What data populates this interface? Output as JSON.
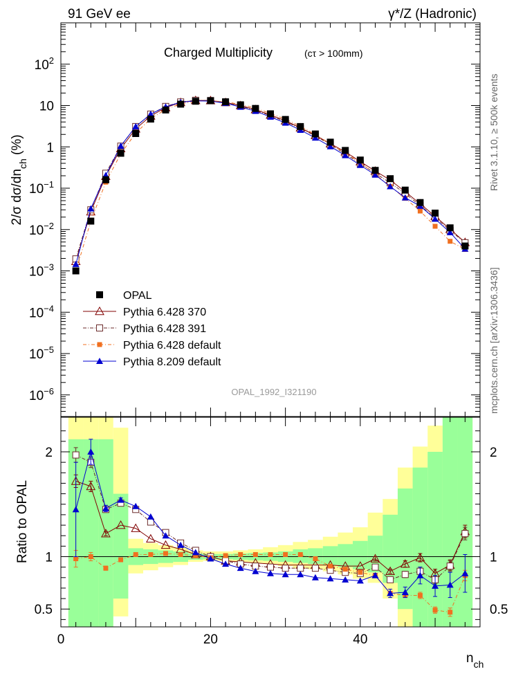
{
  "header": {
    "left": "91 GeV ee",
    "right": "γ*/Z (Hadronic)"
  },
  "side_labels": {
    "rivet": "Rivet 3.1.10, ≥ 500k events",
    "mcplots": "mcplots.cern.ch [arXiv:1306.3436]"
  },
  "watermark": "OPAL_1992_I321190",
  "chart_data": [
    {
      "type": "scatter",
      "title": "Charged Multiplicity",
      "subtitle": "(cτ > 100mm)",
      "ylabel": "2/σ dσ/dn_ch (%)",
      "yscale": "log",
      "xlim": [
        0,
        56
      ],
      "ylim": [
        3e-07,
        1000
      ],
      "yticks": [
        {
          "value": 1e-06,
          "base": "10",
          "exp": "−6"
        },
        {
          "value": 1e-05,
          "base": "10",
          "exp": "−5"
        },
        {
          "value": 0.0001,
          "base": "10",
          "exp": "−4"
        },
        {
          "value": 0.001,
          "base": "10",
          "exp": "−3"
        },
        {
          "value": 0.01,
          "base": "10",
          "exp": "−2"
        },
        {
          "value": 0.1,
          "base": "10",
          "exp": "−1"
        },
        {
          "value": 1,
          "base": "1",
          "exp": ""
        },
        {
          "value": 10,
          "base": "10",
          "exp": ""
        },
        {
          "value": 100,
          "base": "10",
          "exp": "2"
        }
      ],
      "legend": "bottom-left",
      "series": [
        {
          "name": "OPAL",
          "color": "#000000",
          "marker": "square-filled",
          "x": [
            2,
            4,
            6,
            8,
            10,
            12,
            14,
            16,
            18,
            20,
            22,
            24,
            26,
            28,
            30,
            32,
            34,
            36,
            38,
            40,
            42,
            44,
            46,
            48,
            50,
            52,
            54
          ],
          "y": [
            0.001,
            0.016,
            0.16,
            0.7,
            2.1,
            4.7,
            7.8,
            10.8,
            12.7,
            13.1,
            12.3,
            10.4,
            8.5,
            6.3,
            4.6,
            3.1,
            2.05,
            1.3,
            0.82,
            0.48,
            0.27,
            0.17,
            0.09,
            0.045,
            0.025,
            0.011,
            0.004
          ]
        },
        {
          "name": "Pythia 6.428 370",
          "color": "#800000",
          "marker": "triangle-open",
          "x": [
            2,
            4,
            6,
            8,
            10,
            12,
            14,
            16,
            18,
            20,
            22,
            24,
            26,
            28,
            30,
            32,
            34,
            36,
            38,
            40,
            42,
            44,
            46,
            48,
            50,
            52,
            54
          ],
          "y": [
            0.0017,
            0.027,
            0.195,
            0.91,
            2.73,
            5.6,
            8.9,
            11.9,
            13.3,
            13.2,
            11.9,
            10.0,
            8.0,
            5.9,
            4.3,
            2.9,
            1.9,
            1.2,
            0.76,
            0.44,
            0.26,
            0.158,
            0.082,
            0.042,
            0.021,
            0.0102,
            0.0049
          ]
        },
        {
          "name": "Pythia 6.428 391",
          "color": "#6a2a2a",
          "marker": "square-open",
          "x": [
            2,
            4,
            6,
            8,
            10,
            12,
            14,
            16,
            18,
            20,
            22,
            24,
            26,
            28,
            30,
            32,
            34,
            36,
            38,
            40,
            42,
            44,
            46,
            48,
            50,
            52,
            54
          ],
          "y": [
            0.00195,
            0.03,
            0.23,
            1.04,
            3.1,
            6.2,
            9.5,
            12.2,
            13.4,
            13.2,
            11.8,
            9.7,
            7.7,
            5.7,
            4.1,
            2.77,
            1.85,
            1.13,
            0.68,
            0.39,
            0.23,
            0.135,
            0.075,
            0.038,
            0.0195,
            0.0095,
            0.0048
          ]
        },
        {
          "name": "Pythia 6.428 default",
          "color": "#f07020",
          "marker": "square-small-filled",
          "x": [
            2,
            4,
            6,
            8,
            10,
            12,
            14,
            16,
            18,
            20,
            22,
            24,
            26,
            28,
            30,
            32,
            34,
            36,
            38,
            40,
            42,
            44,
            46,
            48,
            50,
            52,
            54
          ],
          "y": [
            0.00098,
            0.016,
            0.14,
            0.68,
            2.15,
            4.8,
            8.0,
            11.0,
            12.8,
            13.0,
            12.4,
            10.6,
            8.7,
            6.4,
            4.7,
            3.15,
            2.0,
            1.18,
            0.72,
            0.41,
            0.22,
            0.11,
            0.057,
            0.028,
            0.012,
            0.0052,
            0.0033
          ]
        },
        {
          "name": "Pythia 8.209 default",
          "color": "#0000d0",
          "marker": "triangle-filled",
          "x": [
            2,
            4,
            6,
            8,
            10,
            12,
            14,
            16,
            18,
            20,
            22,
            24,
            26,
            28,
            30,
            32,
            34,
            36,
            38,
            40,
            42,
            44,
            46,
            48,
            50,
            52,
            54
          ],
          "y": [
            0.00145,
            0.032,
            0.205,
            1.05,
            3.1,
            6.2,
            9.3,
            12.0,
            13.0,
            12.8,
            11.4,
            9.2,
            7.3,
            5.3,
            3.8,
            2.55,
            1.65,
            1.02,
            0.62,
            0.36,
            0.21,
            0.11,
            0.059,
            0.037,
            0.018,
            0.0085,
            0.0034
          ]
        }
      ]
    },
    {
      "type": "scatter",
      "ylabel": "Ratio to OPAL",
      "xlabel": "n_ch",
      "xlim": [
        0,
        56
      ],
      "ylim": [
        0.33,
        2.33
      ],
      "xticks": [
        0,
        20,
        40
      ],
      "yticks": [
        0.5,
        1,
        2
      ],
      "band_edges": [
        1,
        3,
        5,
        7,
        9,
        11,
        13,
        15,
        17,
        19,
        21,
        23,
        25,
        27,
        29,
        31,
        33,
        35,
        37,
        39,
        41,
        43,
        45,
        47,
        49,
        51,
        53,
        55
      ],
      "band_green": [
        [
          0.33,
          2.12
        ],
        [
          0.33,
          2.12
        ],
        [
          0.33,
          2.12
        ],
        [
          0.6,
          1.6
        ],
        [
          0.92,
          1.08
        ],
        [
          0.93,
          1.07
        ],
        [
          0.94,
          1.06
        ],
        [
          0.95,
          1.05
        ],
        [
          0.97,
          1.03
        ],
        [
          0.975,
          1.025
        ],
        [
          0.975,
          1.025
        ],
        [
          0.97,
          1.03
        ],
        [
          0.965,
          1.035
        ],
        [
          0.96,
          1.04
        ],
        [
          0.95,
          1.05
        ],
        [
          0.94,
          1.07
        ],
        [
          0.93,
          1.08
        ],
        [
          0.92,
          1.1
        ],
        [
          0.9,
          1.12
        ],
        [
          0.88,
          1.15
        ],
        [
          0.85,
          1.2
        ],
        [
          0.75,
          1.4
        ],
        [
          0.5,
          1.65
        ],
        [
          0.33,
          1.85
        ],
        [
          0.33,
          2.0
        ],
        [
          0.33,
          2.33
        ],
        [
          0.33,
          2.33
        ]
      ],
      "band_yellow": [
        [
          0.33,
          2.33
        ],
        [
          0.33,
          2.33
        ],
        [
          0.33,
          2.33
        ],
        [
          0.43,
          2.23
        ],
        [
          0.84,
          1.17
        ],
        [
          0.87,
          1.13
        ],
        [
          0.9,
          1.11
        ],
        [
          0.92,
          1.09
        ],
        [
          0.95,
          1.06
        ],
        [
          0.96,
          1.05
        ],
        [
          0.96,
          1.05
        ],
        [
          0.95,
          1.06
        ],
        [
          0.94,
          1.07
        ],
        [
          0.93,
          1.09
        ],
        [
          0.91,
          1.11
        ],
        [
          0.89,
          1.14
        ],
        [
          0.88,
          1.16
        ],
        [
          0.86,
          1.19
        ],
        [
          0.83,
          1.23
        ],
        [
          0.79,
          1.28
        ],
        [
          0.75,
          1.42
        ],
        [
          0.6,
          1.55
        ],
        [
          0.33,
          1.85
        ],
        [
          0.33,
          2.05
        ],
        [
          0.33,
          2.25
        ],
        [
          0.33,
          2.33
        ],
        [
          0.33,
          2.33
        ]
      ],
      "series": [
        {
          "name": "Pythia 6.428 370",
          "color": "#800000",
          "marker": "triangle-open",
          "x": [
            2,
            4,
            6,
            8,
            10,
            12,
            14,
            16,
            18,
            20,
            22,
            24,
            26,
            28,
            30,
            32,
            34,
            36,
            38,
            40,
            42,
            44,
            46,
            48,
            50,
            52,
            54
          ],
          "y": [
            1.72,
            1.67,
            1.22,
            1.3,
            1.27,
            1.17,
            1.11,
            1.07,
            1.02,
            1.0,
            0.96,
            0.95,
            0.94,
            0.93,
            0.92,
            0.92,
            0.92,
            0.92,
            0.91,
            0.91,
            0.98,
            0.86,
            0.93,
            0.99,
            0.84,
            0.92,
            1.24
          ],
          "err": [
            0.06,
            0.05,
            0.02,
            0.01,
            0.01,
            0.005,
            0.005,
            0.005,
            0.005,
            0.005,
            0.005,
            0.005,
            0.005,
            0.005,
            0.005,
            0.005,
            0.01,
            0.01,
            0.01,
            0.01,
            0.02,
            0.02,
            0.03,
            0.04,
            0.04,
            0.05,
            0.06
          ]
        },
        {
          "name": "Pythia 6.428 391",
          "color": "#6a2a2a",
          "marker": "square-open",
          "x": [
            2,
            4,
            6,
            8,
            10,
            12,
            14,
            16,
            18,
            20,
            22,
            24,
            26,
            28,
            30,
            32,
            34,
            36,
            38,
            40,
            42,
            44,
            46,
            48,
            50,
            52,
            54
          ],
          "y": [
            1.97,
            1.9,
            1.45,
            1.51,
            1.45,
            1.33,
            1.23,
            1.13,
            1.06,
            1.0,
            0.96,
            0.93,
            0.91,
            0.9,
            0.89,
            0.89,
            0.89,
            0.87,
            0.85,
            0.84,
            0.9,
            0.78,
            0.83,
            0.86,
            0.78,
            0.91,
            1.22
          ],
          "err": [
            0.07,
            0.05,
            0.02,
            0.01,
            0.01,
            0.005,
            0.005,
            0.005,
            0.005,
            0.005,
            0.005,
            0.005,
            0.005,
            0.005,
            0.005,
            0.005,
            0.01,
            0.01,
            0.01,
            0.01,
            0.02,
            0.02,
            0.03,
            0.04,
            0.04,
            0.05,
            0.06
          ]
        },
        {
          "name": "Pythia 6.428 default",
          "color": "#f07020",
          "marker": "square-small-filled",
          "x": [
            2,
            4,
            6,
            8,
            10,
            12,
            14,
            16,
            18,
            20,
            22,
            24,
            26,
            28,
            30,
            32,
            34,
            36,
            38,
            40,
            42,
            44,
            46,
            48,
            50,
            52,
            54
          ],
          "y": [
            0.98,
            1.0,
            0.89,
            0.97,
            1.02,
            1.02,
            1.03,
            1.02,
            1.01,
            0.99,
            1.01,
            1.02,
            1.02,
            1.02,
            1.02,
            1.02,
            0.98,
            0.91,
            0.88,
            0.85,
            0.82,
            0.65,
            0.63,
            0.63,
            0.49,
            0.47,
            0.82
          ],
          "err": [
            0.08,
            0.04,
            0.02,
            0.01,
            0.01,
            0.005,
            0.005,
            0.005,
            0.005,
            0.005,
            0.005,
            0.005,
            0.005,
            0.005,
            0.005,
            0.005,
            0.01,
            0.01,
            0.01,
            0.01,
            0.02,
            0.02,
            0.02,
            0.03,
            0.03,
            0.04,
            0.05
          ]
        },
        {
          "name": "Pythia 8.209 default",
          "color": "#0000d0",
          "marker": "triangle-filled",
          "x": [
            2,
            4,
            6,
            8,
            10,
            12,
            14,
            16,
            18,
            20,
            22,
            24,
            26,
            28,
            30,
            32,
            34,
            36,
            38,
            40,
            42,
            44,
            46,
            48,
            50,
            52,
            54
          ],
          "y": [
            1.45,
            2.0,
            1.46,
            1.54,
            1.48,
            1.38,
            1.2,
            1.11,
            1.04,
            0.98,
            0.93,
            0.89,
            0.86,
            0.84,
            0.83,
            0.83,
            0.8,
            0.79,
            0.78,
            0.77,
            0.82,
            0.65,
            0.66,
            0.82,
            0.72,
            0.73,
            0.84
          ],
          "err": [
            0.45,
            0.12,
            0.03,
            0.02,
            0.01,
            0.005,
            0.005,
            0.005,
            0.005,
            0.005,
            0.005,
            0.005,
            0.005,
            0.005,
            0.005,
            0.005,
            0.01,
            0.01,
            0.01,
            0.01,
            0.02,
            0.04,
            0.05,
            0.08,
            0.1,
            0.12,
            0.18
          ]
        }
      ]
    }
  ]
}
